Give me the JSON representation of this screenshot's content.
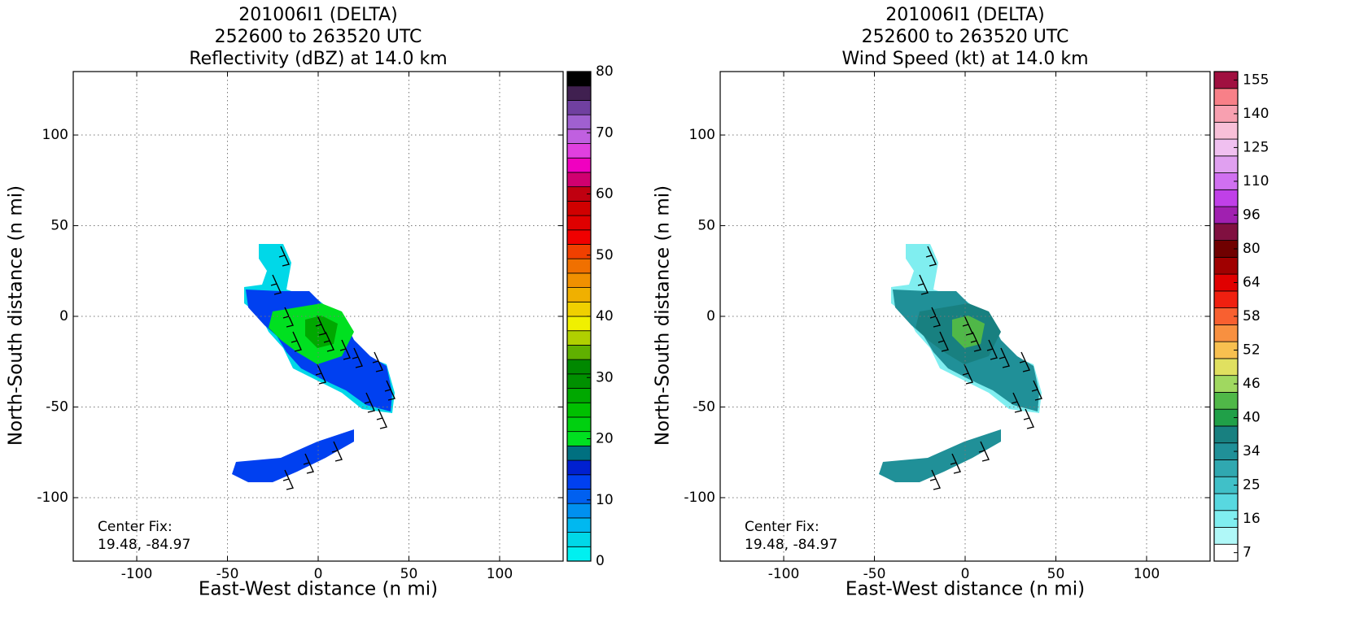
{
  "chart_data": [
    {
      "type": "heatmap",
      "title": "201006I1 (DELTA)",
      "subtitle": "252600 to 263520 UTC",
      "field_label": "Reflectivity (dBZ) at 14.0 km",
      "xlabel": "East-West distance (n mi)",
      "ylabel": "North-South distance (n mi)",
      "xlim": [
        -135,
        135
      ],
      "ylim": [
        -135,
        135
      ],
      "xticks": [
        -100,
        -50,
        0,
        50,
        100
      ],
      "yticks": [
        -100,
        -50,
        0,
        50,
        100
      ],
      "grid": true,
      "annotation": [
        "Center Fix:",
        "19.48, -84.97"
      ],
      "colorbar": {
        "lim": [
          0,
          80
        ],
        "ticks": [
          0,
          10,
          20,
          30,
          40,
          50,
          60,
          70,
          80
        ],
        "colors": [
          "#00f0f0",
          "#00d8e8",
          "#00b8f0",
          "#0090f0",
          "#0060f0",
          "#0040f0",
          "#0020d0",
          "#007080",
          "#00e020",
          "#00d010",
          "#00c000",
          "#00a800",
          "#009000",
          "#008800",
          "#60b000",
          "#b0d000",
          "#f0f000",
          "#f0d000",
          "#f0b000",
          "#f09000",
          "#f07000",
          "#f04000",
          "#f00000",
          "#e00000",
          "#d00000",
          "#c00010",
          "#d00070",
          "#f000c0",
          "#e040e0",
          "#c060e0",
          "#a060d0",
          "#7040a0",
          "#402050",
          "#000000"
        ]
      },
      "field_colors": [
        "#00d8e8",
        "#0040f0",
        "#00e020",
        "#00a800"
      ]
    },
    {
      "type": "heatmap",
      "title": "201006I1 (DELTA)",
      "subtitle": "252600 to 263520 UTC",
      "field_label": "Wind Speed (kt) at 14.0 km",
      "xlabel": "East-West distance (n mi)",
      "ylabel": "North-South distance (n mi)",
      "xlim": [
        -135,
        135
      ],
      "ylim": [
        -135,
        135
      ],
      "xticks": [
        -100,
        -50,
        0,
        50,
        100
      ],
      "yticks": [
        -100,
        -50,
        0,
        50,
        100
      ],
      "grid": true,
      "annotation": [
        "Center Fix:",
        "19.48, -84.97"
      ],
      "colorbar": {
        "levels": [
          7,
          null,
          16,
          null,
          25,
          null,
          34,
          null,
          40,
          null,
          46,
          null,
          52,
          null,
          58,
          null,
          64,
          null,
          80,
          null,
          96,
          null,
          110,
          null,
          125,
          null,
          140,
          null,
          155
        ],
        "colors": [
          "#ffffff",
          "#b0f8f8",
          "#80eef0",
          "#58d8e0",
          "#40c0c8",
          "#30a8b0",
          "#209098",
          "#188080",
          "#20a048",
          "#50b848",
          "#a0d860",
          "#e0e060",
          "#f8c050",
          "#f89040",
          "#f86030",
          "#f02010",
          "#e00000",
          "#a00000",
          "#700000",
          "#801040",
          "#a020b0",
          "#c040e8",
          "#d070f0",
          "#e0a0f0",
          "#f0c0f0",
          "#f8c0d8",
          "#f8a0b0",
          "#f88088",
          "#a01040"
        ]
      },
      "field_colors": [
        "#80eef0",
        "#209098",
        "#188080",
        "#50b848"
      ]
    }
  ]
}
